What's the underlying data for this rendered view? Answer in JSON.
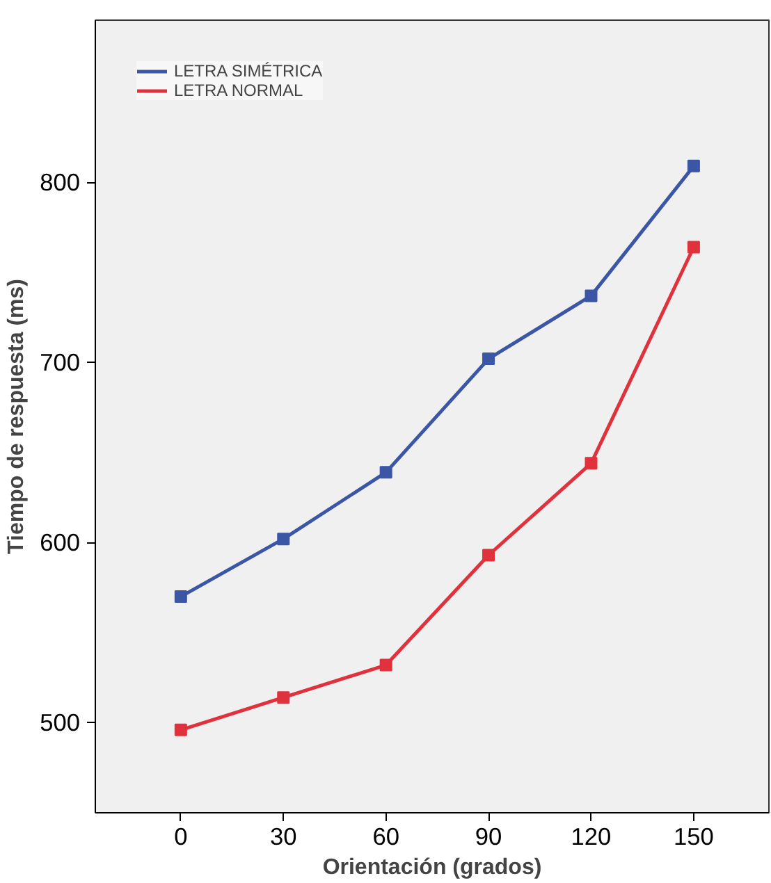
{
  "chart_data": {
    "type": "line",
    "xlabel": "Orientación (grados)",
    "ylabel": "Tiempo de respuesta (ms)",
    "x": [
      0,
      30,
      60,
      90,
      120,
      150
    ],
    "series": [
      {
        "name": "LETRA SIMÉTRICA",
        "color": "#3a56a5",
        "values": [
          570,
          602,
          639,
          702,
          737,
          809
        ]
      },
      {
        "name": "LETRA NORMAL",
        "color": "#e0323c",
        "values": [
          496,
          514,
          532,
          593,
          644,
          764
        ]
      }
    ],
    "xlim": [
      -25,
      172
    ],
    "xticks": [
      0,
      30,
      60,
      90,
      120,
      150
    ],
    "ylim": [
      450,
      890
    ],
    "yticks": [
      500,
      600,
      700,
      800
    ],
    "grid": false,
    "legend": "top left",
    "marker": "square",
    "line_style": "solid"
  }
}
